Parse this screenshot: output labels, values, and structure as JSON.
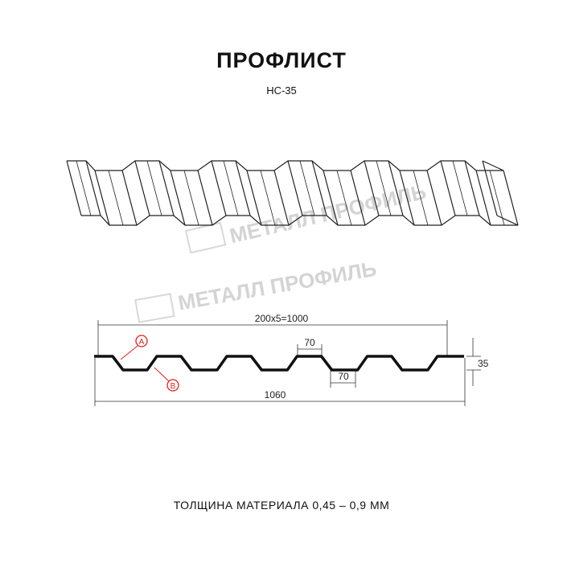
{
  "header": {
    "title": "ПРОФЛИСТ",
    "model": "НС-35"
  },
  "watermark": "МЕТАЛЛ ПРОФИЛЬ",
  "drawing": {
    "dim_pitch": "200x5=1000",
    "dim_total": "1060",
    "dim_top_flat": "70",
    "dim_bottom_flat": "70",
    "dim_height": "35",
    "marker_a": "A",
    "marker_b": "B",
    "marker_color": "#e0201c"
  },
  "footer": {
    "thickness": "ТОЛЩИНА МАТЕРИАЛА 0,45 – 0,9 ММ"
  }
}
